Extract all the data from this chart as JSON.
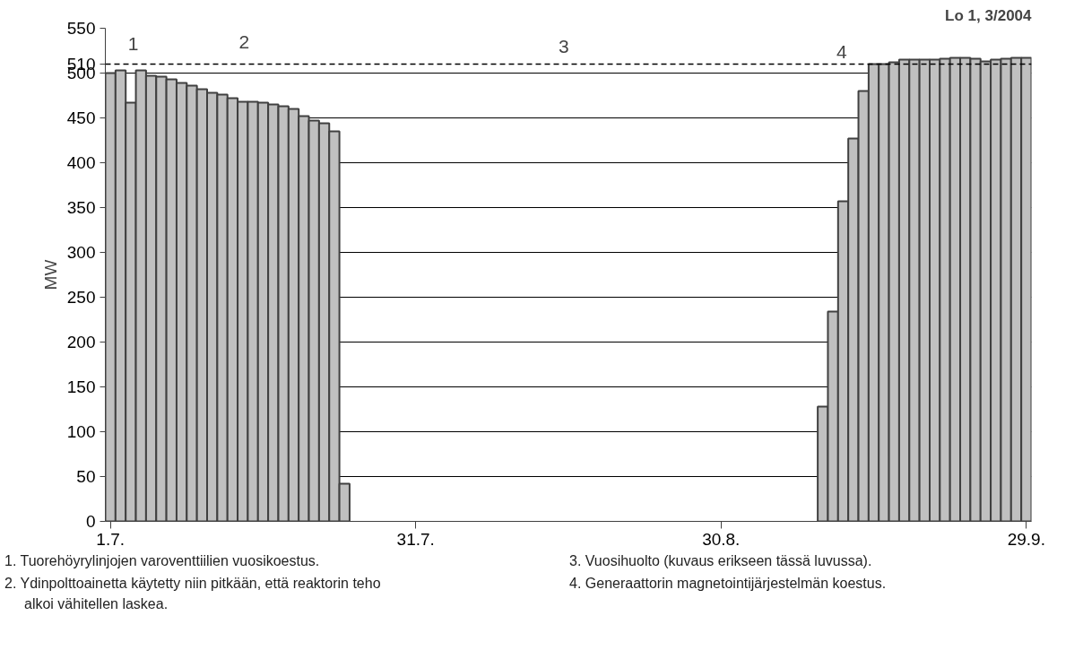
{
  "chart_data": {
    "type": "bar",
    "title": "Lo 1, 3/2004",
    "ylabel": "MW",
    "categories": [
      "1.7.",
      null,
      null,
      null,
      null,
      null,
      null,
      null,
      null,
      null,
      null,
      null,
      null,
      null,
      null,
      null,
      null,
      null,
      null,
      null,
      null,
      null,
      null,
      null,
      null,
      null,
      null,
      null,
      null,
      null,
      "31.7.",
      null,
      null,
      null,
      null,
      null,
      null,
      null,
      null,
      null,
      null,
      null,
      null,
      null,
      null,
      null,
      null,
      null,
      null,
      null,
      null,
      null,
      null,
      null,
      null,
      null,
      null,
      null,
      null,
      null,
      "30.8.",
      null,
      null,
      null,
      null,
      null,
      null,
      null,
      null,
      null,
      null,
      null,
      null,
      null,
      null,
      null,
      null,
      null,
      null,
      null,
      null,
      null,
      null,
      null,
      null,
      null,
      null,
      null,
      null,
      null,
      "29.9."
    ],
    "values": [
      500,
      503,
      467,
      503,
      497,
      496,
      493,
      489,
      486,
      482,
      478,
      476,
      472,
      468,
      468,
      467,
      465,
      463,
      460,
      452,
      447,
      444,
      435,
      42,
      null,
      null,
      null,
      null,
      null,
      null,
      null,
      null,
      null,
      null,
      null,
      null,
      null,
      null,
      null,
      null,
      null,
      null,
      null,
      null,
      null,
      null,
      null,
      null,
      null,
      null,
      null,
      null,
      null,
      null,
      null,
      null,
      null,
      null,
      null,
      null,
      null,
      null,
      null,
      null,
      null,
      null,
      null,
      null,
      null,
      null,
      128,
      234,
      357,
      427,
      480,
      510,
      510,
      512,
      515,
      515,
      515,
      515,
      516,
      517,
      517,
      516,
      513,
      515,
      516,
      517,
      517
    ],
    "color": "#c0c0c0",
    "ylim": [
      0,
      550
    ],
    "yticks": [
      0,
      50,
      100,
      150,
      200,
      250,
      300,
      350,
      400,
      450,
      500,
      510,
      550
    ],
    "grid": "y",
    "ref_lines": [
      {
        "axis": "y",
        "value": 510,
        "line_style": "dashed",
        "color": "#000000"
      }
    ],
    "annotations": [
      "1",
      "2",
      "3",
      "4",
      "1.  Tuorehöyrylinjojen varoventtiilien vuosikoestus.",
      "2.  Ydinpolttoainetta käytetty niin pitkään, että reaktorin teho alkoi vähitellen laskea.",
      "3.  Vuosihuolto (kuvaus erikseen tässä luvussa).",
      "4.  Generaattorin magnetointijärjestelmän  koestus."
    ]
  }
}
